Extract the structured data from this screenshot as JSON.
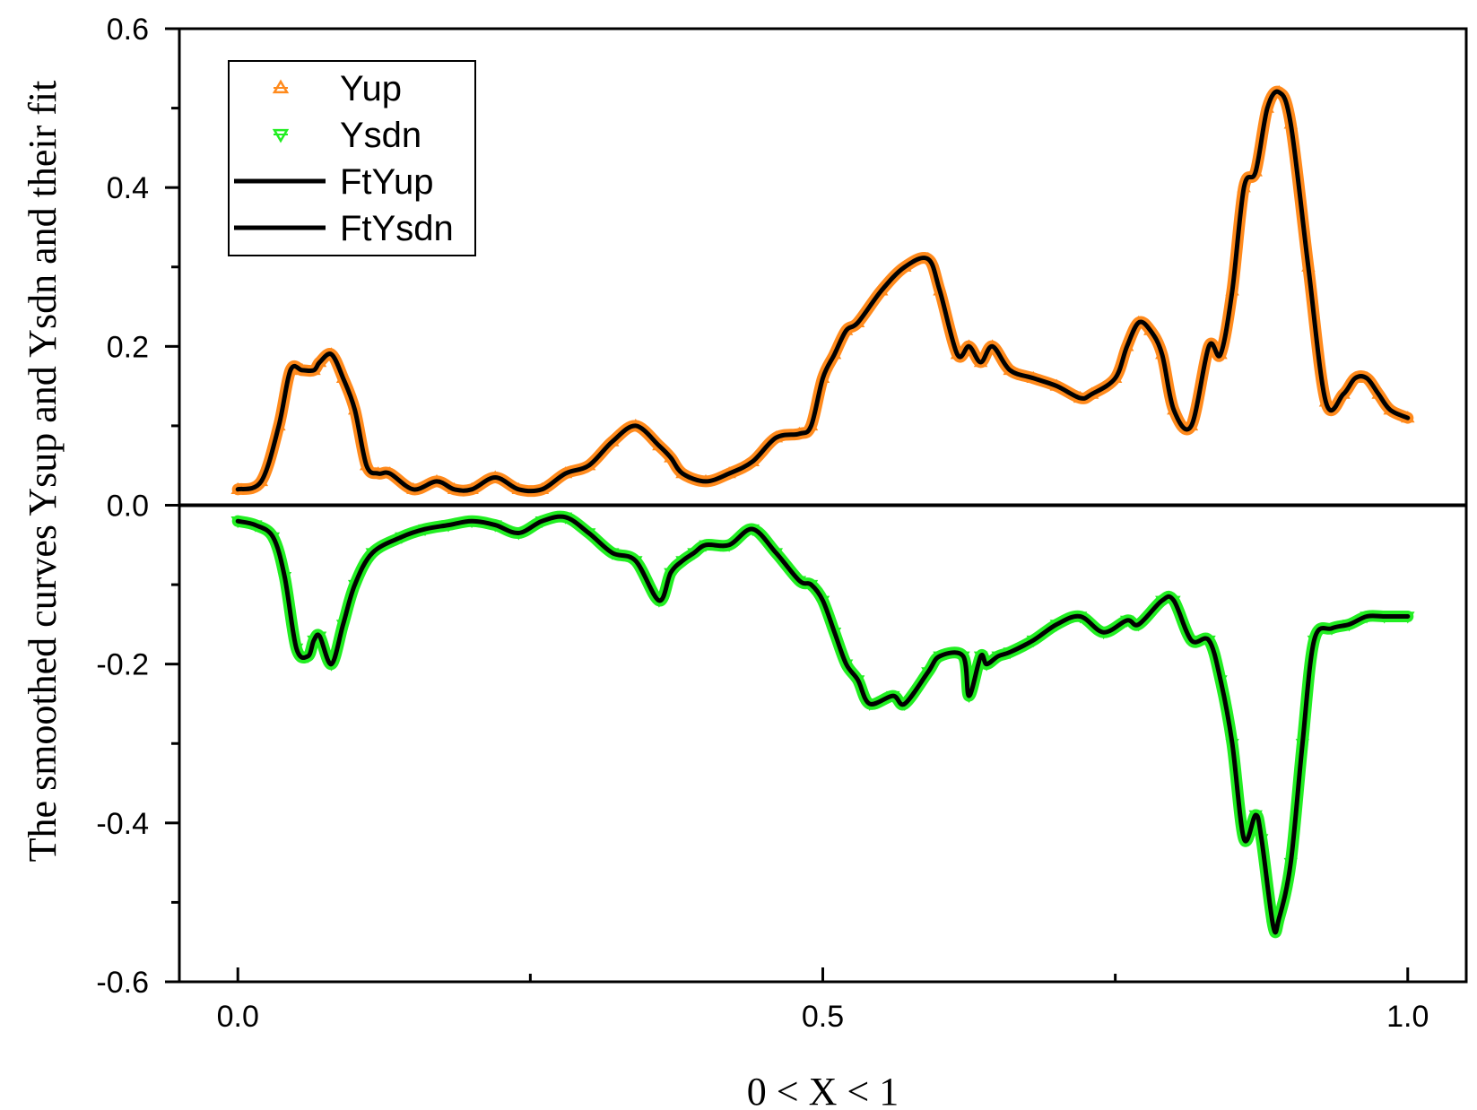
{
  "chart_data": {
    "type": "line",
    "title": "",
    "xlabel": "0 < X < 1",
    "ylabel": "The smoothed curves Ysup and Ysdn and their fit",
    "xlim": [
      -0.05,
      1.05
    ],
    "ylim": [
      -0.6,
      0.6
    ],
    "x_ticks": [
      0.0,
      0.5,
      1.0
    ],
    "x_tick_labels": [
      "0.0",
      "0.5",
      "1.0"
    ],
    "x_minor_ticks": [
      0.25,
      0.75
    ],
    "y_ticks": [
      0.6,
      0.4,
      0.2,
      0.0,
      -0.2,
      -0.4,
      -0.6
    ],
    "y_tick_labels": [
      "0.6",
      "0.4",
      "0.2",
      "0.0",
      "-0.2",
      "-0.4",
      "-0.6"
    ],
    "y_minor_ticks": [
      0.5,
      0.3,
      0.1,
      -0.1,
      -0.3,
      -0.5
    ],
    "grid": false,
    "reference_line_y": 0.0,
    "legend": {
      "position": "top-left",
      "entries": [
        {
          "label": "Yup",
          "kind": "marker",
          "marker": "triangle-up",
          "color": "#ff8a1c"
        },
        {
          "label": "Ysdn",
          "kind": "marker",
          "marker": "triangle-down",
          "color": "#22ee22"
        },
        {
          "label": "FtYup",
          "kind": "line",
          "color": "#000000"
        },
        {
          "label": "FtYsdn",
          "kind": "line",
          "color": "#000000"
        }
      ]
    },
    "series": [
      {
        "name": "Yup",
        "role": "data",
        "color": "#ff8a1c",
        "x": [
          0.0,
          0.02,
          0.035,
          0.045,
          0.055,
          0.065,
          0.07,
          0.08,
          0.09,
          0.1,
          0.11,
          0.12,
          0.13,
          0.15,
          0.17,
          0.185,
          0.2,
          0.22,
          0.24,
          0.26,
          0.28,
          0.3,
          0.32,
          0.34,
          0.36,
          0.37,
          0.38,
          0.4,
          0.42,
          0.44,
          0.46,
          0.48,
          0.49,
          0.5,
          0.51,
          0.52,
          0.53,
          0.55,
          0.57,
          0.59,
          0.6,
          0.615,
          0.625,
          0.635,
          0.645,
          0.66,
          0.68,
          0.7,
          0.72,
          0.73,
          0.75,
          0.76,
          0.77,
          0.78,
          0.79,
          0.8,
          0.815,
          0.83,
          0.84,
          0.85,
          0.86,
          0.87,
          0.88,
          0.89,
          0.9,
          0.915,
          0.93,
          0.945,
          0.955,
          0.965,
          0.975,
          0.985,
          1.0
        ],
        "y": [
          0.02,
          0.03,
          0.1,
          0.17,
          0.17,
          0.17,
          0.18,
          0.19,
          0.16,
          0.12,
          0.05,
          0.04,
          0.04,
          0.02,
          0.03,
          0.02,
          0.02,
          0.035,
          0.02,
          0.02,
          0.04,
          0.05,
          0.08,
          0.1,
          0.075,
          0.06,
          0.04,
          0.03,
          0.04,
          0.055,
          0.085,
          0.09,
          0.1,
          0.16,
          0.19,
          0.22,
          0.23,
          0.27,
          0.3,
          0.31,
          0.27,
          0.19,
          0.2,
          0.18,
          0.2,
          0.17,
          0.16,
          0.15,
          0.135,
          0.14,
          0.16,
          0.2,
          0.23,
          0.22,
          0.19,
          0.12,
          0.1,
          0.2,
          0.19,
          0.27,
          0.4,
          0.42,
          0.5,
          0.52,
          0.48,
          0.3,
          0.13,
          0.14,
          0.16,
          0.16,
          0.14,
          0.12,
          0.11
        ]
      },
      {
        "name": "Ysdn",
        "role": "data",
        "color": "#22ee22",
        "x": [
          0.0,
          0.015,
          0.03,
          0.04,
          0.05,
          0.06,
          0.065,
          0.07,
          0.08,
          0.09,
          0.1,
          0.115,
          0.14,
          0.16,
          0.18,
          0.2,
          0.22,
          0.24,
          0.26,
          0.28,
          0.3,
          0.32,
          0.34,
          0.36,
          0.37,
          0.38,
          0.39,
          0.4,
          0.42,
          0.44,
          0.46,
          0.48,
          0.49,
          0.5,
          0.51,
          0.52,
          0.53,
          0.54,
          0.56,
          0.57,
          0.59,
          0.6,
          0.62,
          0.625,
          0.635,
          0.64,
          0.65,
          0.66,
          0.68,
          0.7,
          0.72,
          0.74,
          0.76,
          0.77,
          0.79,
          0.8,
          0.815,
          0.83,
          0.84,
          0.85,
          0.86,
          0.87,
          0.875,
          0.885,
          0.89,
          0.9,
          0.91,
          0.92,
          0.935,
          0.95,
          0.965,
          0.98,
          1.0
        ],
        "y": [
          -0.02,
          -0.025,
          -0.04,
          -0.09,
          -0.18,
          -0.19,
          -0.17,
          -0.165,
          -0.2,
          -0.15,
          -0.1,
          -0.06,
          -0.04,
          -0.03,
          -0.025,
          -0.02,
          -0.025,
          -0.035,
          -0.02,
          -0.015,
          -0.035,
          -0.06,
          -0.07,
          -0.12,
          -0.085,
          -0.07,
          -0.06,
          -0.05,
          -0.05,
          -0.03,
          -0.06,
          -0.095,
          -0.1,
          -0.12,
          -0.16,
          -0.2,
          -0.22,
          -0.25,
          -0.24,
          -0.25,
          -0.21,
          -0.19,
          -0.19,
          -0.24,
          -0.19,
          -0.2,
          -0.19,
          -0.185,
          -0.17,
          -0.15,
          -0.14,
          -0.16,
          -0.145,
          -0.15,
          -0.12,
          -0.12,
          -0.17,
          -0.17,
          -0.22,
          -0.3,
          -0.42,
          -0.39,
          -0.42,
          -0.53,
          -0.52,
          -0.45,
          -0.3,
          -0.17,
          -0.155,
          -0.15,
          -0.14,
          -0.14,
          -0.14
        ]
      },
      {
        "name": "FtYup",
        "role": "fit",
        "color": "#000000",
        "fit_of": "Yup"
      },
      {
        "name": "FtYsdn",
        "role": "fit",
        "color": "#000000",
        "fit_of": "Ysdn"
      }
    ]
  }
}
